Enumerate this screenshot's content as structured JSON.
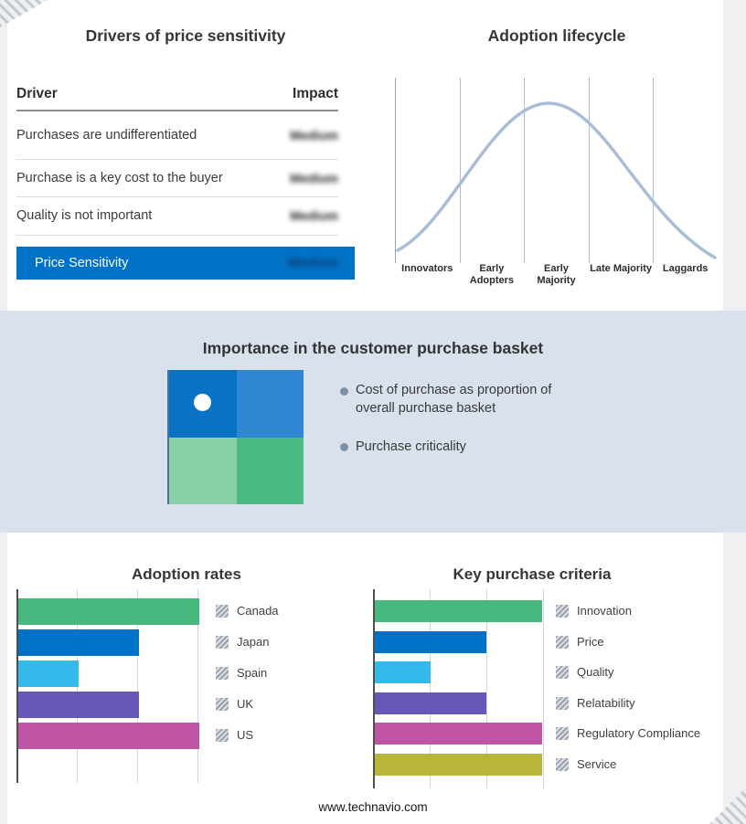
{
  "page": {
    "footer_text": "www.technavio.com",
    "band_color": "#d9e2ec"
  },
  "drivers_panel": {
    "title": "Drivers of price sensitivity",
    "header": {
      "driver": "Driver",
      "impact": "Impact"
    },
    "rows": [
      {
        "driver": "Purchases are undifferentiated",
        "impact": "Medium"
      },
      {
        "driver": "Purchase is a key cost to the buyer",
        "impact": "Medium"
      },
      {
        "driver": "Quality is not important",
        "impact": "Medium"
      }
    ],
    "summary_row": {
      "label": "Price Sensitivity",
      "impact": "Medium",
      "bg_color": "#0072c6"
    }
  },
  "basket_panel": {
    "title": "Importance in the customer purchase basket",
    "matrix_colors": {
      "top_left": "#0a72c4",
      "top_right": "#2f86d2",
      "bottom_left": "#8ad1a5",
      "bottom_right": "#4cbb83"
    },
    "bullets": [
      "Cost of purchase as proportion of overall purchase basket",
      "Purchase criticality"
    ]
  },
  "chart_data": [
    {
      "id": "adoption_lifecycle",
      "type": "area",
      "title": "Adoption lifecycle",
      "categories": [
        "Innovators",
        "Early Adopters",
        "Early Majority",
        "Late Majority",
        "Laggards"
      ],
      "values_relative": [
        0.1,
        0.55,
        1.0,
        0.55,
        0.1
      ],
      "description": "Bell curve peaking at Early Majority, no numeric axis labels",
      "color": "#a9bdd6",
      "grid": true,
      "legend_position": "none"
    },
    {
      "id": "adoption_rates",
      "type": "bar",
      "orientation": "horizontal",
      "title": "Adoption rates",
      "categories": [
        "Canada",
        "Japan",
        "Spain",
        "UK",
        "US"
      ],
      "values": [
        3,
        2,
        1,
        2,
        3
      ],
      "value_scale": "relative (no axis tick labels shown)",
      "xlim": [
        0,
        3
      ],
      "colors": [
        "#47b87e",
        "#0072c6",
        "#35b8ea",
        "#6657b8",
        "#c155a5"
      ],
      "grid": true,
      "legend_position": "right"
    },
    {
      "id": "key_purchase_criteria",
      "type": "bar",
      "orientation": "horizontal",
      "title": "Key purchase criteria",
      "categories": [
        "Innovation",
        "Price",
        "Quality",
        "Relatability",
        "Regulatory Compliance",
        "Service"
      ],
      "values": [
        3,
        2,
        1,
        2,
        3,
        3
      ],
      "value_scale": "relative (no axis tick labels shown)",
      "xlim": [
        0,
        3
      ],
      "colors": [
        "#47b87e",
        "#0072c6",
        "#35b8ea",
        "#6657b8",
        "#c155a5",
        "#b9b43c"
      ],
      "grid": true,
      "legend_position": "right"
    }
  ]
}
